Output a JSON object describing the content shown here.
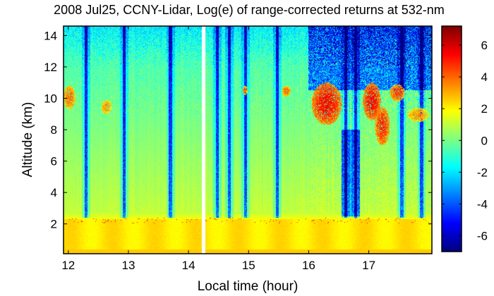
{
  "chart_data": {
    "type": "heatmap",
    "title": "2008 Jul25, CCNY-Lidar, Log(e) of range-corrected returns at 532-nm",
    "xlabel": "Local time (hour)",
    "ylabel": "Altitude (km)",
    "xlim": [
      11.92,
      18.05
    ],
    "ylim": [
      0.1,
      14.6
    ],
    "x_ticks": [
      "12",
      "13",
      "14",
      "15",
      "16",
      "17"
    ],
    "x_tick_values": [
      12,
      13,
      14,
      15,
      16,
      17
    ],
    "y_ticks": [
      "2",
      "4",
      "6",
      "8",
      "10",
      "12",
      "14"
    ],
    "y_tick_values": [
      2,
      4,
      6,
      8,
      10,
      12,
      14
    ],
    "colorbar": {
      "range": [
        -7,
        7.2
      ],
      "ticks": [
        "6",
        "4",
        "2",
        "0",
        "-2",
        "-4",
        "-6"
      ],
      "tick_values": [
        6,
        4,
        2,
        0,
        -2,
        -4,
        -6
      ],
      "colormap": "jet"
    },
    "features": {
      "boundary_layer_top_km": 2.3,
      "data_gap_hour": 14.25,
      "rain_columns_hour": [
        12.3,
        12.93,
        13.7,
        14.48,
        14.68,
        14.95,
        15.48,
        16.62,
        16.78,
        17.55,
        17.88
      ],
      "cirrus_clouds": [
        {
          "x": [
            11.92,
            12.12
          ],
          "y": [
            9.3,
            10.8
          ],
          "value": 4
        },
        {
          "x": [
            12.55,
            12.72
          ],
          "y": [
            9.0,
            9.9
          ],
          "value": 3.5
        },
        {
          "x": [
            14.9,
            14.98
          ],
          "y": [
            10.2,
            10.8
          ],
          "value": 4
        },
        {
          "x": [
            15.55,
            15.7
          ],
          "y": [
            10.1,
            10.8
          ],
          "value": 4
        },
        {
          "x": [
            16.05,
            16.55
          ],
          "y": [
            8.3,
            11.0
          ],
          "value": 5.5
        },
        {
          "x": [
            16.9,
            17.2
          ],
          "y": [
            8.6,
            11.0
          ],
          "value": 5.5
        },
        {
          "x": [
            17.1,
            17.35
          ],
          "y": [
            7.0,
            9.5
          ],
          "value": 5
        },
        {
          "x": [
            17.35,
            17.6
          ],
          "y": [
            9.8,
            10.9
          ],
          "value": 4.5
        },
        {
          "x": [
            17.65,
            18.0
          ],
          "y": [
            8.5,
            9.4
          ],
          "value": 3.5
        }
      ]
    }
  }
}
